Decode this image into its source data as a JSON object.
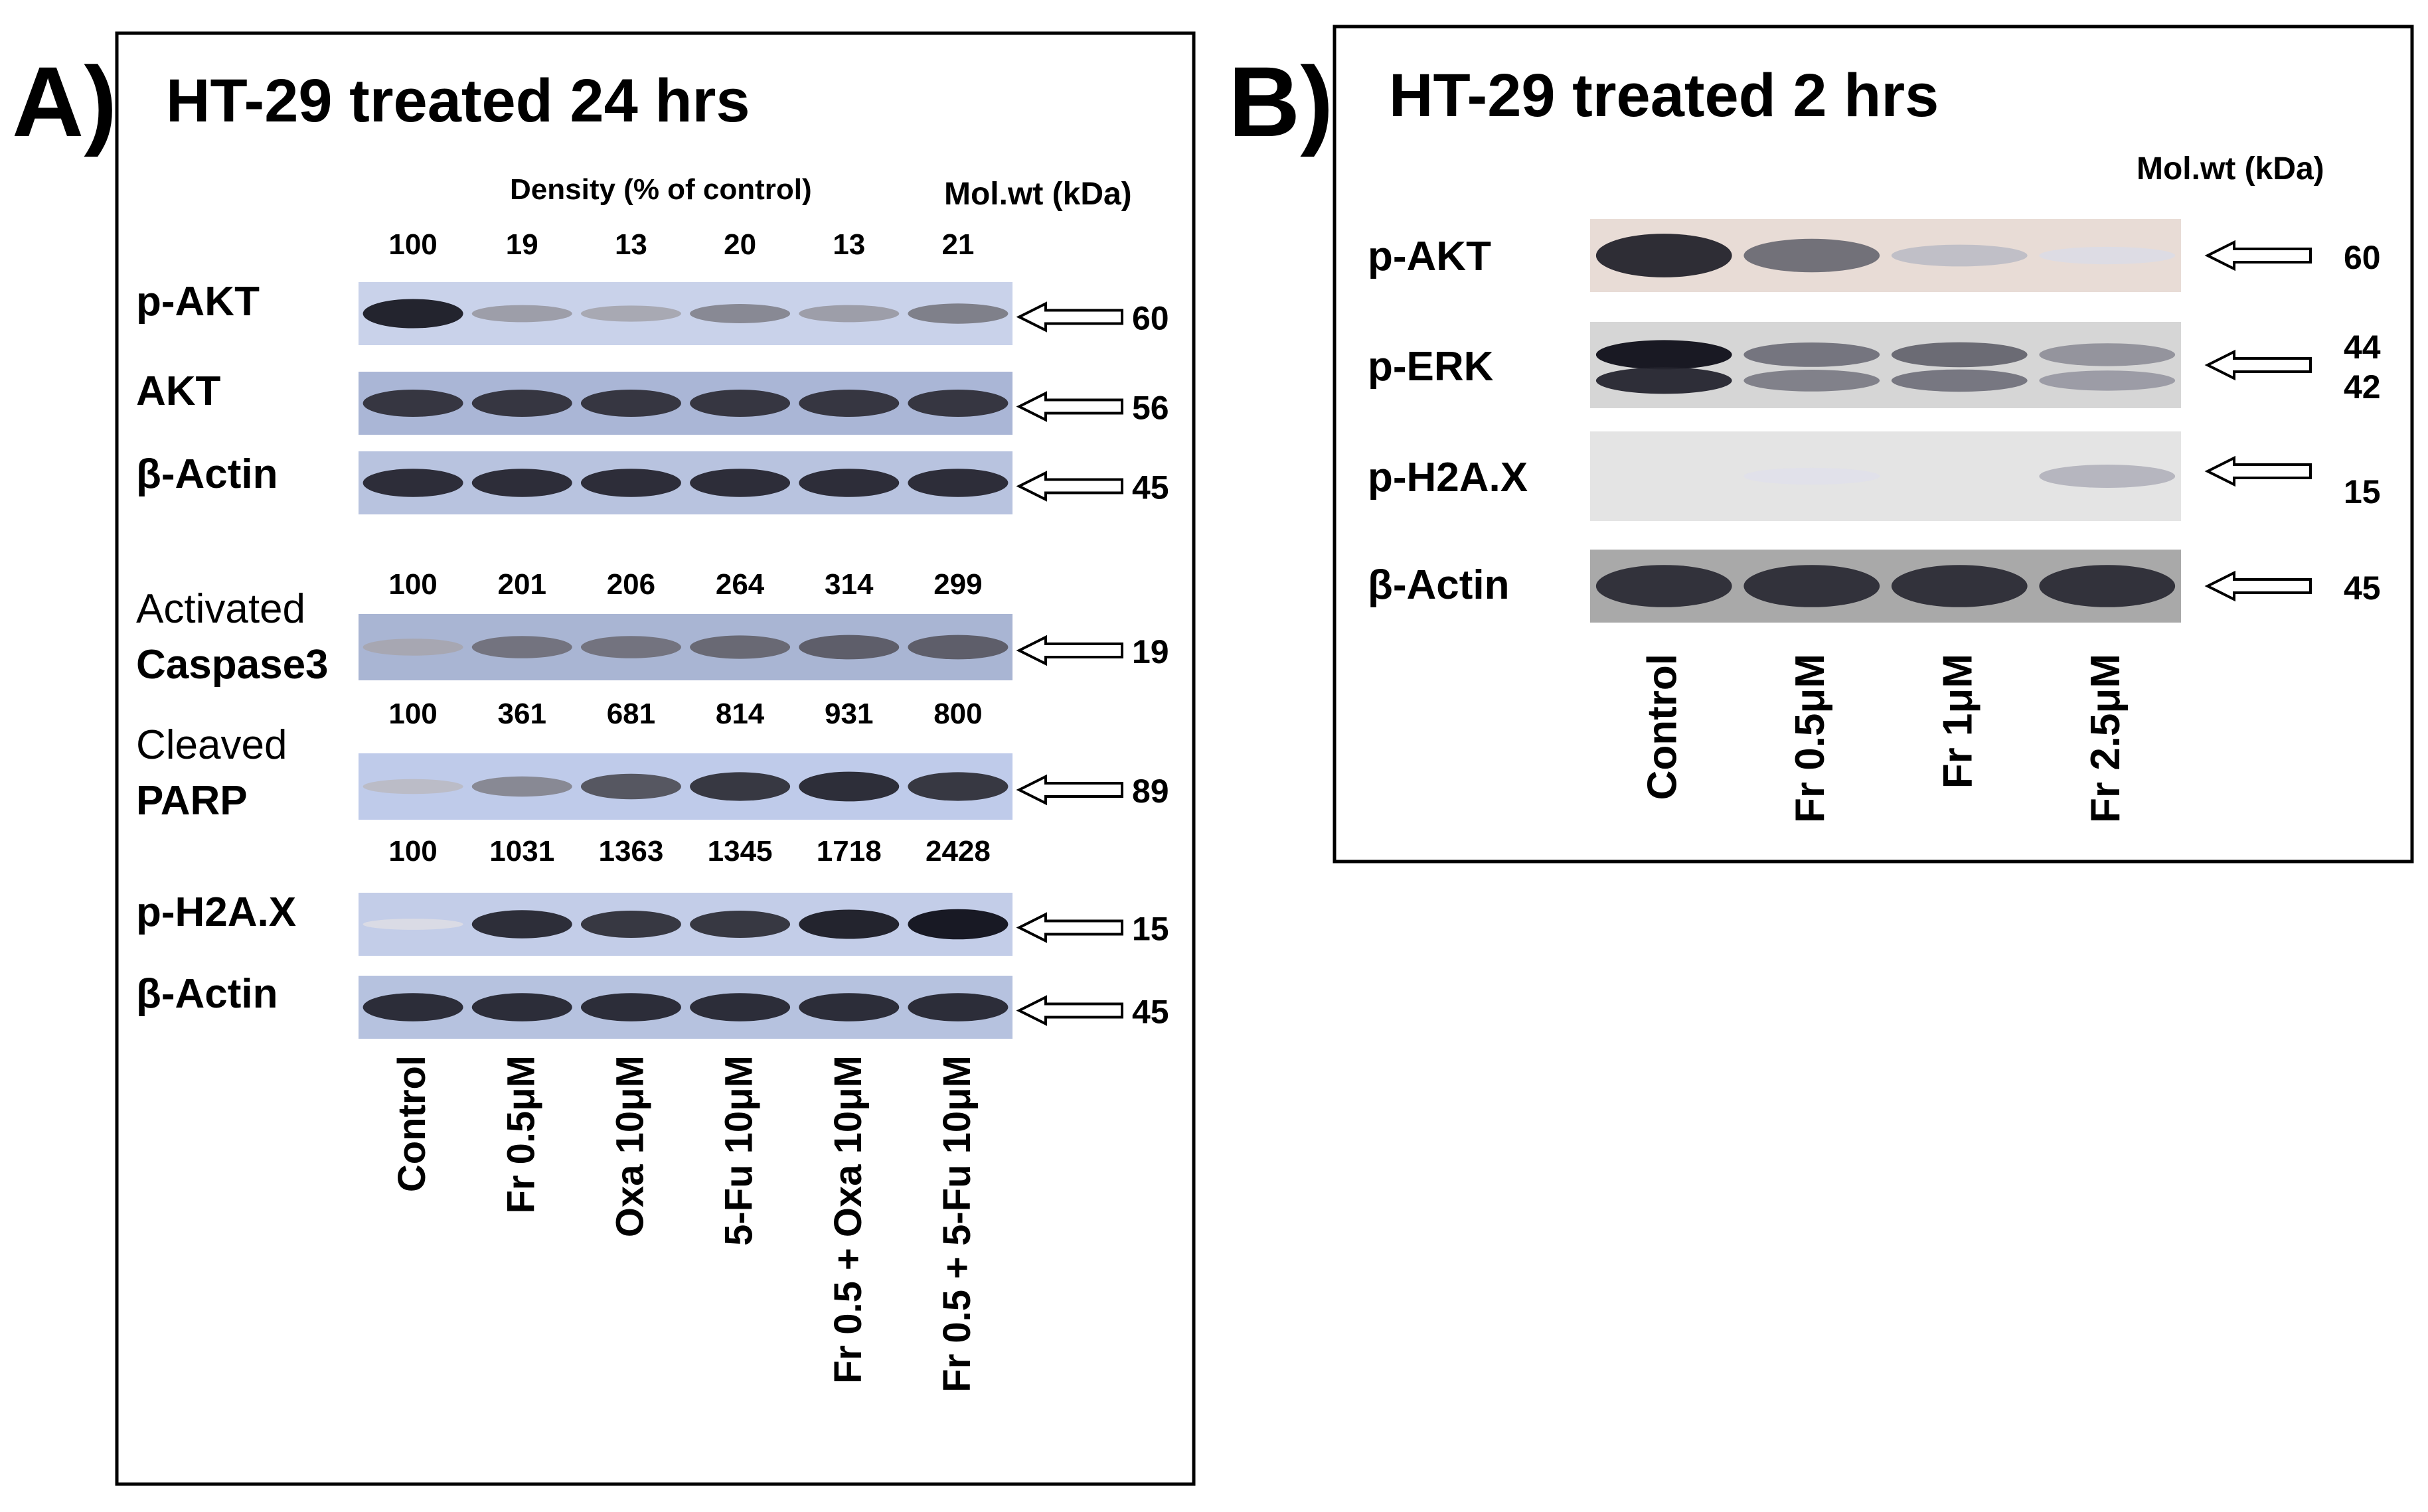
{
  "panel_a": {
    "letter": "A)",
    "title": "HT-29 treated 24 hrs",
    "density_header": "Density (% of control)",
    "molwt_header": "Mol.wt (kDa)",
    "lanes": [
      "Control",
      "Fr 0.5μM",
      "Oxa 10μM",
      "5-Fu 10μM",
      "Fr 0.5 + Oxa 10μM",
      "Fr 0.5 + 5-Fu 10μM"
    ],
    "blots": [
      {
        "label": "p-AKT",
        "label_bold": true,
        "density": [
          "100",
          "19",
          "13",
          "20",
          "13",
          "21"
        ],
        "mw": "60",
        "bg": "#c9d2ea",
        "band_dark": [
          0.95,
          0.35,
          0.3,
          0.45,
          0.35,
          0.5
        ]
      },
      {
        "label": "AKT",
        "label_bold": true,
        "density": [],
        "mw": "56",
        "bg": "#aab6d6",
        "band_dark": [
          0.85,
          0.85,
          0.85,
          0.85,
          0.85,
          0.85
        ]
      },
      {
        "label": "β-Actin",
        "label_bold": true,
        "density": [],
        "mw": "45",
        "bg": "#b8c3df",
        "band_dark": [
          0.9,
          0.9,
          0.9,
          0.9,
          0.9,
          0.9
        ]
      },
      {
        "label": "Activated",
        "label2": "Caspase3",
        "label_bold": false,
        "density": [
          "100",
          "201",
          "206",
          "264",
          "314",
          "299"
        ],
        "mw": "19",
        "bg": "#a9b5d3",
        "band_dark": [
          0.3,
          0.55,
          0.55,
          0.6,
          0.65,
          0.65
        ]
      },
      {
        "label": "Cleaved",
        "label2": "PARP",
        "label_bold": false,
        "density": [
          "100",
          "361",
          "681",
          "814",
          "931",
          "800"
        ],
        "mw": "89",
        "bg": "#bfcbea",
        "band_dark": [
          0.2,
          0.45,
          0.7,
          0.85,
          0.9,
          0.85
        ]
      },
      {
        "label": "p-H2A.X",
        "label_bold": true,
        "density": [
          "100",
          "1031",
          "1363",
          "1345",
          "1718",
          "2428"
        ],
        "mw": "15",
        "bg": "#c3cde8",
        "band_dark": [
          0.05,
          0.9,
          0.85,
          0.85,
          0.95,
          1.0
        ]
      },
      {
        "label": "β-Actin",
        "label_bold": true,
        "density": [],
        "mw": "45",
        "bg": "#b6c2df",
        "band_dark": [
          0.9,
          0.9,
          0.9,
          0.9,
          0.9,
          0.9
        ]
      }
    ]
  },
  "panel_b": {
    "letter": "B)",
    "title": "HT-29 treated 2 hrs",
    "molwt_header": "Mol.wt (kDa)",
    "lanes": [
      "Control",
      "Fr 0.5μM",
      "Fr 1μM",
      "Fr 2.5μM"
    ],
    "blots": [
      {
        "label": "p-AKT",
        "mw": "60",
        "mw2": "",
        "bg": "#e8dcd6",
        "band_dark": [
          0.95,
          0.6,
          0.2,
          0.05
        ]
      },
      {
        "label": "p-ERK",
        "mw": "44",
        "mw2": "42",
        "bg": "#d6d6d6",
        "band_dark": [
          1.0,
          0.55,
          0.6,
          0.4
        ]
      },
      {
        "label": "p-H2A.X",
        "mw": "15",
        "mw2": "",
        "bg": "#e4e4e4",
        "band_dark": [
          0.0,
          0.03,
          0.0,
          0.25
        ]
      },
      {
        "label": "β-Actin",
        "mw": "45",
        "mw2": "",
        "bg": "#a9a9a9",
        "band_dark": [
          0.9,
          0.9,
          0.9,
          0.9
        ]
      }
    ]
  }
}
